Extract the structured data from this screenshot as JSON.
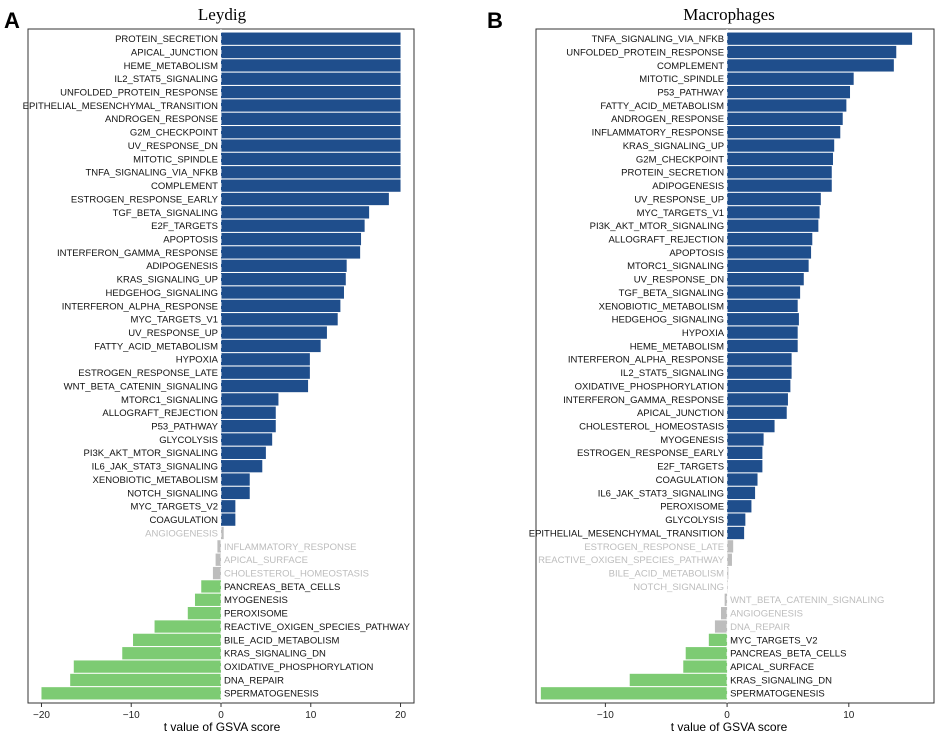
{
  "colors": {
    "up": "#1F4E8C",
    "down": "#7DCB73",
    "ns": "#BDBDBD",
    "ns_text": "#BDBDBD",
    "label": "#111111"
  },
  "chart_data": [
    {
      "panel": "A",
      "type": "bar",
      "orientation": "horizontal",
      "title": "Leydig",
      "xlabel": "t value of GSVA score",
      "xlim": [
        -21.5,
        21.5
      ],
      "xticks": [
        -20,
        -10,
        0,
        10,
        20
      ],
      "xtick_labels": [
        "−20",
        "−10",
        "0",
        "10",
        "20"
      ],
      "bars": [
        {
          "label": "PROTEIN_SECRETION",
          "value": 20.0,
          "group": "up"
        },
        {
          "label": "APICAL_JUNCTION",
          "value": 20.0,
          "group": "up"
        },
        {
          "label": "HEME_METABOLISM",
          "value": 20.0,
          "group": "up"
        },
        {
          "label": "IL2_STAT5_SIGNALING",
          "value": 20.0,
          "group": "up"
        },
        {
          "label": "UNFOLDED_PROTEIN_RESPONSE",
          "value": 20.0,
          "group": "up"
        },
        {
          "label": "EPITHELIAL_MESENCHYMAL_TRANSITION",
          "value": 20.0,
          "group": "up"
        },
        {
          "label": "ANDROGEN_RESPONSE",
          "value": 20.0,
          "group": "up"
        },
        {
          "label": "G2M_CHECKPOINT",
          "value": 20.0,
          "group": "up"
        },
        {
          "label": "UV_RESPONSE_DN",
          "value": 20.0,
          "group": "up"
        },
        {
          "label": "MITOTIC_SPINDLE",
          "value": 20.0,
          "group": "up"
        },
        {
          "label": "TNFA_SIGNALING_VIA_NFKB",
          "value": 20.0,
          "group": "up"
        },
        {
          "label": "COMPLEMENT",
          "value": 20.0,
          "group": "up"
        },
        {
          "label": "ESTROGEN_RESPONSE_EARLY",
          "value": 18.7,
          "group": "up"
        },
        {
          "label": "TGF_BETA_SIGNALING",
          "value": 16.5,
          "group": "up"
        },
        {
          "label": "E2F_TARGETS",
          "value": 16.0,
          "group": "up"
        },
        {
          "label": "APOPTOSIS",
          "value": 15.6,
          "group": "up"
        },
        {
          "label": "INTERFERON_GAMMA_RESPONSE",
          "value": 15.5,
          "group": "up"
        },
        {
          "label": "ADIPOGENESIS",
          "value": 14.0,
          "group": "up"
        },
        {
          "label": "KRAS_SIGNALING_UP",
          "value": 13.9,
          "group": "up"
        },
        {
          "label": "HEDGEHOG_SIGNALING",
          "value": 13.7,
          "group": "up"
        },
        {
          "label": "INTERFERON_ALPHA_RESPONSE",
          "value": 13.3,
          "group": "up"
        },
        {
          "label": "MYC_TARGETS_V1",
          "value": 13.0,
          "group": "up"
        },
        {
          "label": "UV_RESPONSE_UP",
          "value": 11.8,
          "group": "up"
        },
        {
          "label": "FATTY_ACID_METABOLISM",
          "value": 11.1,
          "group": "up"
        },
        {
          "label": "HYPOXIA",
          "value": 9.9,
          "group": "up"
        },
        {
          "label": "ESTROGEN_RESPONSE_LATE",
          "value": 9.9,
          "group": "up"
        },
        {
          "label": "WNT_BETA_CATENIN_SIGNALING",
          "value": 9.7,
          "group": "up"
        },
        {
          "label": "MTORC1_SIGNALING",
          "value": 6.4,
          "group": "up"
        },
        {
          "label": "ALLOGRAFT_REJECTION",
          "value": 6.1,
          "group": "up"
        },
        {
          "label": "P53_PATHWAY",
          "value": 6.1,
          "group": "up"
        },
        {
          "label": "GLYCOLYSIS",
          "value": 5.7,
          "group": "up"
        },
        {
          "label": "PI3K_AKT_MTOR_SIGNALING",
          "value": 5.0,
          "group": "up"
        },
        {
          "label": "IL6_JAK_STAT3_SIGNALING",
          "value": 4.6,
          "group": "up"
        },
        {
          "label": "XENOBIOTIC_METABOLISM",
          "value": 3.2,
          "group": "up"
        },
        {
          "label": "NOTCH_SIGNALING",
          "value": 3.2,
          "group": "up"
        },
        {
          "label": "MYC_TARGETS_V2",
          "value": 1.6,
          "group": "up"
        },
        {
          "label": "COAGULATION",
          "value": 1.6,
          "group": "up"
        },
        {
          "label": "ANGIOGENESIS",
          "value": 0.3,
          "group": "ns"
        },
        {
          "label": "INFLAMMATORY_RESPONSE",
          "value": -0.4,
          "group": "ns"
        },
        {
          "label": "APICAL_SURFACE",
          "value": -0.6,
          "group": "ns"
        },
        {
          "label": "CHOLESTEROL_HOMEOSTASIS",
          "value": -0.9,
          "group": "ns"
        },
        {
          "label": "PANCREAS_BETA_CELLS",
          "value": -2.2,
          "group": "down"
        },
        {
          "label": "MYOGENESIS",
          "value": -2.9,
          "group": "down"
        },
        {
          "label": "PEROXISOME",
          "value": -3.7,
          "group": "down"
        },
        {
          "label": "REACTIVE_OXIGEN_SPECIES_PATHWAY",
          "value": -7.4,
          "group": "down"
        },
        {
          "label": "BILE_ACID_METABOLISM",
          "value": -9.8,
          "group": "down"
        },
        {
          "label": "KRAS_SIGNALING_DN",
          "value": -11.0,
          "group": "down"
        },
        {
          "label": "OXIDATIVE_PHOSPHORYLATION",
          "value": -16.4,
          "group": "down"
        },
        {
          "label": "DNA_REPAIR",
          "value": -16.8,
          "group": "down"
        },
        {
          "label": "SPERMATOGENESIS",
          "value": -20.0,
          "group": "down"
        }
      ]
    },
    {
      "panel": "B",
      "type": "bar",
      "orientation": "horizontal",
      "title": "Macrophages",
      "xlabel": "t value of GSVA score",
      "xlim": [
        -15.7,
        17.0
      ],
      "xticks": [
        -10,
        0,
        10
      ],
      "xtick_labels": [
        "−10",
        "0",
        "10"
      ],
      "bars": [
        {
          "label": "TNFA_SIGNALING_VIA_NFKB",
          "value": 15.2,
          "group": "up"
        },
        {
          "label": "UNFOLDED_PROTEIN_RESPONSE",
          "value": 13.9,
          "group": "up"
        },
        {
          "label": "COMPLEMENT",
          "value": 13.7,
          "group": "up"
        },
        {
          "label": "MITOTIC_SPINDLE",
          "value": 10.4,
          "group": "up"
        },
        {
          "label": "P53_PATHWAY",
          "value": 10.1,
          "group": "up"
        },
        {
          "label": "FATTY_ACID_METABOLISM",
          "value": 9.8,
          "group": "up"
        },
        {
          "label": "ANDROGEN_RESPONSE",
          "value": 9.5,
          "group": "up"
        },
        {
          "label": "INFLAMMATORY_RESPONSE",
          "value": 9.3,
          "group": "up"
        },
        {
          "label": "KRAS_SIGNALING_UP",
          "value": 8.8,
          "group": "up"
        },
        {
          "label": "G2M_CHECKPOINT",
          "value": 8.7,
          "group": "up"
        },
        {
          "label": "PROTEIN_SECRETION",
          "value": 8.6,
          "group": "up"
        },
        {
          "label": "ADIPOGENESIS",
          "value": 8.6,
          "group": "up"
        },
        {
          "label": "UV_RESPONSE_UP",
          "value": 7.7,
          "group": "up"
        },
        {
          "label": "MYC_TARGETS_V1",
          "value": 7.6,
          "group": "up"
        },
        {
          "label": "PI3K_AKT_MTOR_SIGNALING",
          "value": 7.5,
          "group": "up"
        },
        {
          "label": "ALLOGRAFT_REJECTION",
          "value": 7.0,
          "group": "up"
        },
        {
          "label": "APOPTOSIS",
          "value": 6.9,
          "group": "up"
        },
        {
          "label": "MTORC1_SIGNALING",
          "value": 6.7,
          "group": "up"
        },
        {
          "label": "UV_RESPONSE_DN",
          "value": 6.3,
          "group": "up"
        },
        {
          "label": "TGF_BETA_SIGNALING",
          "value": 6.0,
          "group": "up"
        },
        {
          "label": "XENOBIOTIC_METABOLISM",
          "value": 5.8,
          "group": "up"
        },
        {
          "label": "HEDGEHOG_SIGNALING",
          "value": 5.9,
          "group": "up"
        },
        {
          "label": "HYPOXIA",
          "value": 5.8,
          "group": "up"
        },
        {
          "label": "HEME_METABOLISM",
          "value": 5.8,
          "group": "up"
        },
        {
          "label": "INTERFERON_ALPHA_RESPONSE",
          "value": 5.3,
          "group": "up"
        },
        {
          "label": "IL2_STAT5_SIGNALING",
          "value": 5.3,
          "group": "up"
        },
        {
          "label": "OXIDATIVE_PHOSPHORYLATION",
          "value": 5.2,
          "group": "up"
        },
        {
          "label": "INTERFERON_GAMMA_RESPONSE",
          "value": 5.0,
          "group": "up"
        },
        {
          "label": "APICAL_JUNCTION",
          "value": 4.9,
          "group": "up"
        },
        {
          "label": "CHOLESTEROL_HOMEOSTASIS",
          "value": 3.9,
          "group": "up"
        },
        {
          "label": "MYOGENESIS",
          "value": 3.0,
          "group": "up"
        },
        {
          "label": "ESTROGEN_RESPONSE_EARLY",
          "value": 2.9,
          "group": "up"
        },
        {
          "label": "E2F_TARGETS",
          "value": 2.9,
          "group": "up"
        },
        {
          "label": "COAGULATION",
          "value": 2.5,
          "group": "up"
        },
        {
          "label": "IL6_JAK_STAT3_SIGNALING",
          "value": 2.3,
          "group": "up"
        },
        {
          "label": "PEROXISOME",
          "value": 2.0,
          "group": "up"
        },
        {
          "label": "GLYCOLYSIS",
          "value": 1.5,
          "group": "up"
        },
        {
          "label": "EPITHELIAL_MESENCHYMAL_TRANSITION",
          "value": 1.4,
          "group": "up"
        },
        {
          "label": "ESTROGEN_RESPONSE_LATE",
          "value": 0.5,
          "group": "ns"
        },
        {
          "label": "REACTIVE_OXIGEN_SPECIES_PATHWAY",
          "value": 0.4,
          "group": "ns"
        },
        {
          "label": "BILE_ACID_METABOLISM",
          "value": 0.1,
          "group": "ns"
        },
        {
          "label": "NOTCH_SIGNALING",
          "value": 0.05,
          "group": "ns"
        },
        {
          "label": "WNT_BETA_CATENIN_SIGNALING",
          "value": -0.2,
          "group": "ns"
        },
        {
          "label": "ANGIOGENESIS",
          "value": -0.5,
          "group": "ns"
        },
        {
          "label": "DNA_REPAIR",
          "value": -1.0,
          "group": "ns"
        },
        {
          "label": "MYC_TARGETS_V2",
          "value": -1.5,
          "group": "down"
        },
        {
          "label": "PANCREAS_BETA_CELLS",
          "value": -3.4,
          "group": "down"
        },
        {
          "label": "APICAL_SURFACE",
          "value": -3.6,
          "group": "down"
        },
        {
          "label": "KRAS_SIGNALING_DN",
          "value": -8.0,
          "group": "down"
        },
        {
          "label": "SPERMATOGENESIS",
          "value": -15.3,
          "group": "down"
        }
      ]
    }
  ]
}
